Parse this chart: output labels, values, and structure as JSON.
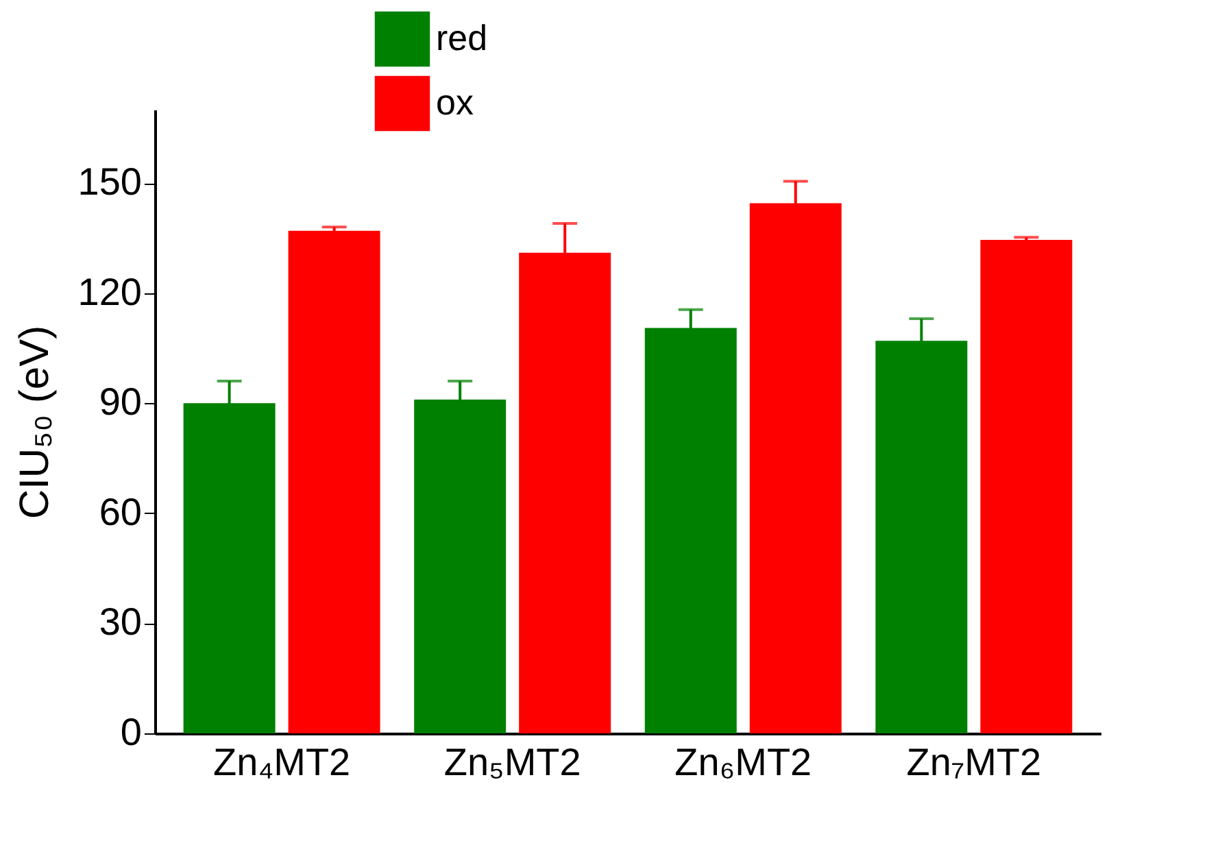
{
  "chart_data": {
    "type": "bar",
    "ylabel": "CIU₅₀ (eV)",
    "categories": [
      "Zn₄MT2",
      "Zn₅MT2",
      "Zn₆MT2",
      "Zn₇MT2"
    ],
    "series": [
      {
        "name": "red",
        "color": "#008000",
        "values": [
          90,
          91,
          110.5,
          107
        ],
        "errors": [
          6,
          5,
          5,
          6
        ]
      },
      {
        "name": "ox",
        "color": "#ff0000",
        "values": [
          137,
          131,
          144.5,
          134.5
        ],
        "errors": [
          1,
          8,
          6,
          0.7
        ]
      }
    ],
    "ylim": [
      0,
      170
    ],
    "yticks": [
      0,
      30,
      60,
      90,
      120,
      150
    ],
    "grid": false,
    "legend": "top"
  }
}
